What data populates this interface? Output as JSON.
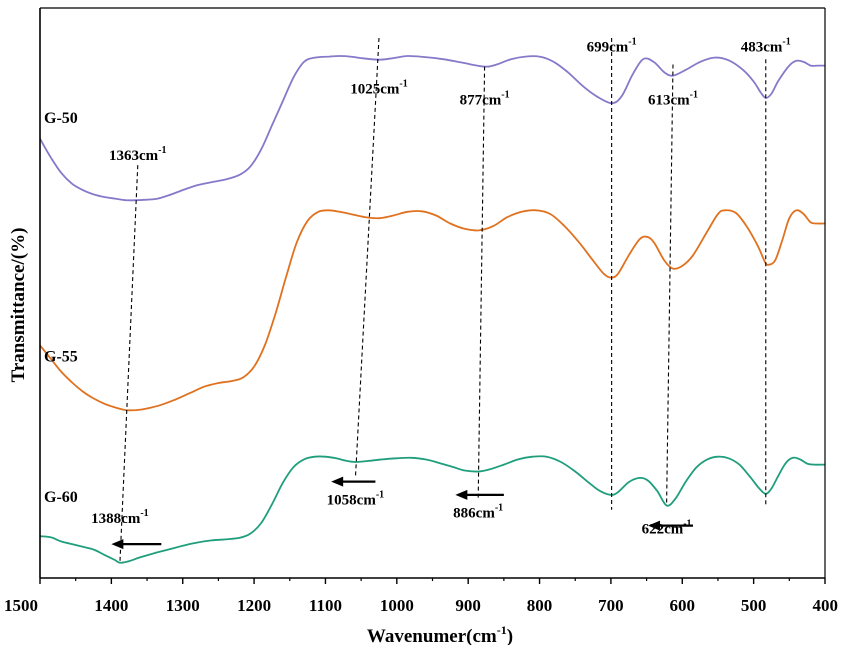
{
  "chart_data": {
    "type": "line",
    "title": "",
    "xlabel": "Wavenumer",
    "xlabel_unit": "(cm",
    "xlabel_sup": "-1",
    "xlabel_close": ")",
    "ylabel": "Transmittance/(%)",
    "x_reversed": true,
    "xlim": [
      1500,
      400
    ],
    "ylim": [
      0,
      1
    ],
    "x_ticks": [
      "1500",
      "1400",
      "1300",
      "1200",
      "1100",
      "1000",
      "900",
      "800",
      "700",
      "600",
      "500",
      "400"
    ],
    "colors": {
      "G-50": "#8579c9",
      "G-55": "#e0711f",
      "G-60": "#1f9e7c"
    },
    "series": [
      {
        "name": "G-50",
        "color": "#8579c9",
        "points": [
          [
            1500,
            0.81
          ],
          [
            1485,
            0.775
          ],
          [
            1470,
            0.745
          ],
          [
            1455,
            0.725
          ],
          [
            1440,
            0.713
          ],
          [
            1425,
            0.705
          ],
          [
            1410,
            0.7
          ],
          [
            1395,
            0.697
          ],
          [
            1380,
            0.694
          ],
          [
            1365,
            0.694
          ],
          [
            1350,
            0.695
          ],
          [
            1335,
            0.697
          ],
          [
            1320,
            0.703
          ],
          [
            1300,
            0.713
          ],
          [
            1280,
            0.722
          ],
          [
            1260,
            0.728
          ],
          [
            1240,
            0.733
          ],
          [
            1220,
            0.742
          ],
          [
            1205,
            0.758
          ],
          [
            1190,
            0.79
          ],
          [
            1175,
            0.835
          ],
          [
            1160,
            0.88
          ],
          [
            1145,
            0.925
          ],
          [
            1130,
            0.955
          ],
          [
            1115,
            0.963
          ],
          [
            1095,
            0.965
          ],
          [
            1080,
            0.966
          ],
          [
            1065,
            0.965
          ],
          [
            1050,
            0.962
          ],
          [
            1025,
            0.959
          ],
          [
            1005,
            0.962
          ],
          [
            985,
            0.966
          ],
          [
            960,
            0.964
          ],
          [
            935,
            0.96
          ],
          [
            910,
            0.954
          ],
          [
            877,
            0.946
          ],
          [
            860,
            0.95
          ],
          [
            840,
            0.96
          ],
          [
            820,
            0.965
          ],
          [
            800,
            0.965
          ],
          [
            780,
            0.955
          ],
          [
            760,
            0.935
          ],
          [
            740,
            0.91
          ],
          [
            720,
            0.89
          ],
          [
            699,
            0.877
          ],
          [
            685,
            0.89
          ],
          [
            670,
            0.93
          ],
          [
            655,
            0.96
          ],
          [
            640,
            0.955
          ],
          [
            625,
            0.935
          ],
          [
            613,
            0.929
          ],
          [
            595,
            0.94
          ],
          [
            575,
            0.955
          ],
          [
            555,
            0.963
          ],
          [
            535,
            0.958
          ],
          [
            515,
            0.94
          ],
          [
            500,
            0.918
          ],
          [
            490,
            0.897
          ],
          [
            483,
            0.887
          ],
          [
            475,
            0.895
          ],
          [
            465,
            0.92
          ],
          [
            450,
            0.948
          ],
          [
            440,
            0.957
          ],
          [
            430,
            0.955
          ],
          [
            420,
            0.948
          ],
          [
            410,
            0.948
          ],
          [
            400,
            0.948
          ]
        ]
      },
      {
        "name": "G-55",
        "color": "#e0711f",
        "points": [
          [
            1500,
            0.42
          ],
          [
            1485,
            0.395
          ],
          [
            1470,
            0.37
          ],
          [
            1455,
            0.35
          ],
          [
            1440,
            0.333
          ],
          [
            1425,
            0.32
          ],
          [
            1410,
            0.31
          ],
          [
            1395,
            0.303
          ],
          [
            1380,
            0.298
          ],
          [
            1365,
            0.298
          ],
          [
            1350,
            0.301
          ],
          [
            1330,
            0.308
          ],
          [
            1310,
            0.318
          ],
          [
            1290,
            0.33
          ],
          [
            1270,
            0.342
          ],
          [
            1250,
            0.349
          ],
          [
            1230,
            0.353
          ],
          [
            1215,
            0.36
          ],
          [
            1200,
            0.38
          ],
          [
            1185,
            0.42
          ],
          [
            1170,
            0.48
          ],
          [
            1155,
            0.55
          ],
          [
            1140,
            0.615
          ],
          [
            1125,
            0.655
          ],
          [
            1110,
            0.672
          ],
          [
            1095,
            0.675
          ],
          [
            1080,
            0.672
          ],
          [
            1065,
            0.668
          ],
          [
            1045,
            0.662
          ],
          [
            1025,
            0.66
          ],
          [
            1005,
            0.665
          ],
          [
            985,
            0.672
          ],
          [
            965,
            0.673
          ],
          [
            945,
            0.665
          ],
          [
            925,
            0.65
          ],
          [
            905,
            0.64
          ],
          [
            885,
            0.637
          ],
          [
            865,
            0.645
          ],
          [
            845,
            0.662
          ],
          [
            825,
            0.672
          ],
          [
            805,
            0.675
          ],
          [
            785,
            0.668
          ],
          [
            765,
            0.645
          ],
          [
            745,
            0.615
          ],
          [
            725,
            0.58
          ],
          [
            710,
            0.555
          ],
          [
            700,
            0.548
          ],
          [
            690,
            0.555
          ],
          [
            675,
            0.59
          ],
          [
            660,
            0.62
          ],
          [
            650,
            0.625
          ],
          [
            640,
            0.615
          ],
          [
            625,
            0.58
          ],
          [
            613,
            0.565
          ],
          [
            600,
            0.57
          ],
          [
            585,
            0.59
          ],
          [
            565,
            0.635
          ],
          [
            550,
            0.668
          ],
          [
            540,
            0.675
          ],
          [
            525,
            0.67
          ],
          [
            510,
            0.645
          ],
          [
            495,
            0.61
          ],
          [
            485,
            0.58
          ],
          [
            480,
            0.572
          ],
          [
            470,
            0.58
          ],
          [
            460,
            0.618
          ],
          [
            450,
            0.66
          ],
          [
            440,
            0.675
          ],
          [
            430,
            0.668
          ],
          [
            420,
            0.652
          ],
          [
            410,
            0.65
          ],
          [
            400,
            0.65
          ]
        ]
      },
      {
        "name": "G-60",
        "color": "#1f9e7c",
        "points": [
          [
            1500,
            0.06
          ],
          [
            1485,
            0.058
          ],
          [
            1470,
            0.05
          ],
          [
            1455,
            0.045
          ],
          [
            1440,
            0.04
          ],
          [
            1425,
            0.035
          ],
          [
            1410,
            0.025
          ],
          [
            1395,
            0.015
          ],
          [
            1388,
            0.01
          ],
          [
            1375,
            0.013
          ],
          [
            1360,
            0.02
          ],
          [
            1340,
            0.028
          ],
          [
            1320,
            0.035
          ],
          [
            1300,
            0.042
          ],
          [
            1280,
            0.048
          ],
          [
            1260,
            0.052
          ],
          [
            1240,
            0.054
          ],
          [
            1220,
            0.057
          ],
          [
            1205,
            0.065
          ],
          [
            1190,
            0.085
          ],
          [
            1175,
            0.12
          ],
          [
            1160,
            0.16
          ],
          [
            1145,
            0.19
          ],
          [
            1130,
            0.205
          ],
          [
            1115,
            0.21
          ],
          [
            1100,
            0.21
          ],
          [
            1085,
            0.207
          ],
          [
            1070,
            0.202
          ],
          [
            1058,
            0.2
          ],
          [
            1040,
            0.202
          ],
          [
            1020,
            0.205
          ],
          [
            1000,
            0.207
          ],
          [
            980,
            0.208
          ],
          [
            960,
            0.205
          ],
          [
            940,
            0.198
          ],
          [
            920,
            0.19
          ],
          [
            905,
            0.184
          ],
          [
            886,
            0.182
          ],
          [
            870,
            0.186
          ],
          [
            850,
            0.195
          ],
          [
            830,
            0.205
          ],
          [
            810,
            0.21
          ],
          [
            790,
            0.21
          ],
          [
            770,
            0.2
          ],
          [
            750,
            0.182
          ],
          [
            730,
            0.16
          ],
          [
            715,
            0.145
          ],
          [
            700,
            0.138
          ],
          [
            690,
            0.143
          ],
          [
            675,
            0.162
          ],
          [
            660,
            0.17
          ],
          [
            648,
            0.165
          ],
          [
            635,
            0.145
          ],
          [
            622,
            0.118
          ],
          [
            610,
            0.13
          ],
          [
            595,
            0.163
          ],
          [
            580,
            0.19
          ],
          [
            565,
            0.205
          ],
          [
            550,
            0.21
          ],
          [
            535,
            0.207
          ],
          [
            520,
            0.195
          ],
          [
            505,
            0.172
          ],
          [
            492,
            0.15
          ],
          [
            483,
            0.14
          ],
          [
            475,
            0.15
          ],
          [
            465,
            0.175
          ],
          [
            455,
            0.198
          ],
          [
            445,
            0.208
          ],
          [
            435,
            0.205
          ],
          [
            425,
            0.197
          ],
          [
            415,
            0.195
          ],
          [
            400,
            0.195
          ]
        ]
      }
    ],
    "series_labels": [
      {
        "text": "G-50",
        "series": "G-50"
      },
      {
        "text": "G-55",
        "series": "G-55"
      },
      {
        "text": "G-60",
        "series": "G-60"
      }
    ],
    "peak_lines": [
      {
        "x": [
          1363,
          1388
        ],
        "y": [
          0.76,
          0.01
        ]
      },
      {
        "x": [
          1025,
          1058
        ],
        "y": [
          1.0,
          0.17
        ]
      },
      {
        "x": [
          877,
          886
        ],
        "y": [
          0.946,
          0.13
        ]
      },
      {
        "x": [
          699,
          699
        ],
        "y": [
          1.0,
          0.11
        ]
      },
      {
        "x": [
          613,
          622
        ],
        "y": [
          0.95,
          0.118
        ]
      },
      {
        "x": [
          483,
          483
        ],
        "y": [
          0.96,
          0.12
        ]
      }
    ],
    "annotations": [
      {
        "base": "1363cm",
        "sup": "-1",
        "x": 1363,
        "y": 0.77
      },
      {
        "base": "1025cm",
        "sup": "-1",
        "x": 1025,
        "y": 0.895
      },
      {
        "base": "877cm",
        "sup": "-1",
        "x": 877,
        "y": 0.875
      },
      {
        "base": "699cm",
        "sup": "-1",
        "x": 699,
        "y": 0.975
      },
      {
        "base": "613cm",
        "sup": "-1",
        "x": 613,
        "y": 0.875
      },
      {
        "base": "483cm",
        "sup": "-1",
        "x": 483,
        "y": 0.975
      },
      {
        "base": "1388cm",
        "sup": "-1",
        "x": 1388,
        "y": 0.085
      },
      {
        "base": "1058cm",
        "sup": "-1",
        "x": 1058,
        "y": 0.12
      },
      {
        "base": "886cm",
        "sup": "-1",
        "x": 886,
        "y": 0.095
      },
      {
        "base": "622cm",
        "sup": "-1",
        "x": 622,
        "y": 0.065
      }
    ],
    "arrows": [
      {
        "x_from": 1330,
        "x_to": 1400,
        "y": 0.045
      },
      {
        "x_from": 1030,
        "x_to": 1092,
        "y": 0.163
      },
      {
        "x_from": 850,
        "x_to": 918,
        "y": 0.138
      },
      {
        "x_from": 585,
        "x_to": 648,
        "y": 0.08
      }
    ]
  }
}
